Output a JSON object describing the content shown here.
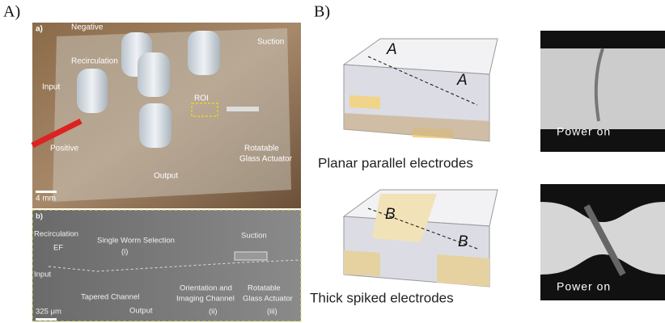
{
  "panel_a": {
    "label": "A)",
    "photo_a": {
      "label": "a)",
      "annotations": [
        "Negative",
        "Suction",
        "Recirculation",
        "Input",
        "ROI",
        "Positive",
        "Output",
        [
          "Rotatable",
          "Glass Actuator"
        ]
      ],
      "scale_bar": "4 mm"
    },
    "photo_b": {
      "label": "b)",
      "annotations": [
        "Recirculation",
        "EF",
        "Single Worm Selection",
        "(i)",
        "Suction",
        "Input",
        "Tapered Channel",
        "Output",
        [
          "Orientation and",
          "Imaging Channel",
          "(ii)"
        ],
        [
          "Rotatable",
          "Glass Actuator",
          "(iii)"
        ]
      ],
      "scale_bar": "325 μm"
    }
  },
  "panel_b": {
    "label": "B)",
    "planar": {
      "markers": [
        "A",
        "A"
      ],
      "caption": "Planar parallel electrodes",
      "photo_caption": "Power on"
    },
    "spiked": {
      "markers": [
        "B",
        "B"
      ],
      "caption": "Thick spiked electrodes",
      "photo_caption": "Power on"
    }
  }
}
